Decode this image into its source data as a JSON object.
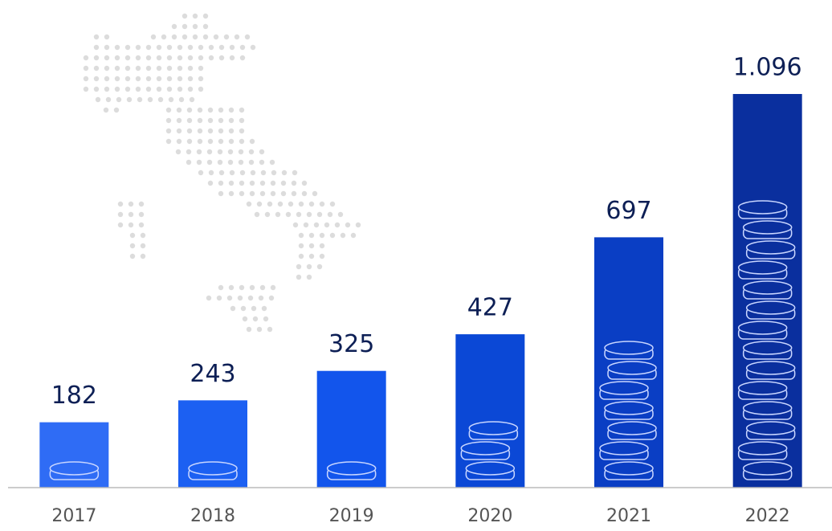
{
  "chart_data": {
    "type": "bar",
    "categories": [
      "2017",
      "2018",
      "2019",
      "2020",
      "2021",
      "2022"
    ],
    "values": [
      182,
      243,
      325,
      427,
      697,
      1096
    ],
    "value_labels": [
      "182",
      "243",
      "325",
      "427",
      "697",
      "1.096"
    ],
    "colors": [
      "#2f6cf5",
      "#1c60f2",
      "#1255ec",
      "#0b48d6",
      "#0a3ec4",
      "#0a2f9e"
    ]
  }
}
